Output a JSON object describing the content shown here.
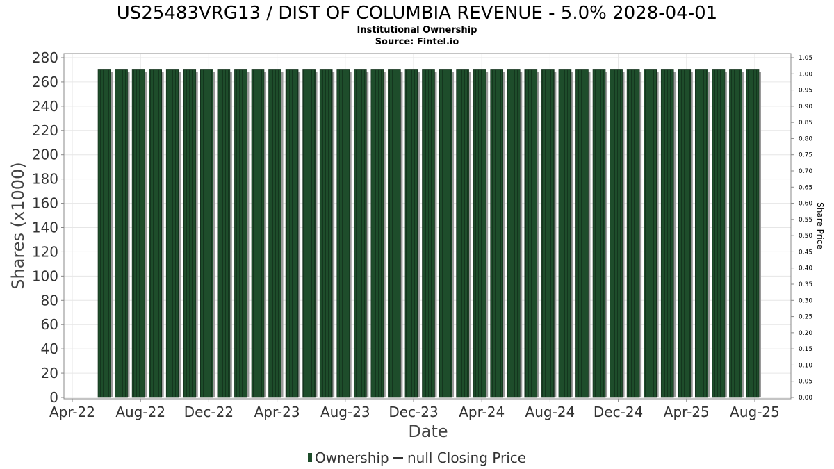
{
  "chart_data": {
    "type": "bar",
    "title": "US25483VRG13 / DIST OF COLUMBIA REVENUE - 5.0% 2028-04-01",
    "subtitle": "Institutional Ownership",
    "source": "Source: Fintel.io",
    "xlabel": "Date",
    "ylabel": "Shares (x1000)",
    "y2label": "Share Price",
    "ylim": [
      0,
      280
    ],
    "y2lim": [
      0,
      1.05
    ],
    "yticks": [
      "0",
      "20",
      "40",
      "60",
      "80",
      "100",
      "120",
      "140",
      "160",
      "180",
      "200",
      "220",
      "240",
      "260",
      "280"
    ],
    "y2ticks": [
      "0.00",
      "0.05",
      "0.10",
      "0.15",
      "0.20",
      "0.25",
      "0.30",
      "0.35",
      "0.40",
      "0.45",
      "0.50",
      "0.55",
      "0.60",
      "0.65",
      "0.70",
      "0.75",
      "0.80",
      "0.85",
      "0.90",
      "0.95",
      "1.00",
      "1.05"
    ],
    "xticks": [
      "Apr-22",
      "Aug-22",
      "Dec-22",
      "Apr-23",
      "Aug-23",
      "Dec-23",
      "Apr-24",
      "Aug-24",
      "Dec-24",
      "Apr-25",
      "Aug-25"
    ],
    "grid": true,
    "series": [
      {
        "name": "Ownership",
        "color": "#1e4d2b",
        "values": [
          270,
          270,
          270,
          270,
          270,
          270,
          270,
          270,
          270,
          270,
          270,
          270,
          270,
          270,
          270,
          270,
          270,
          270,
          270,
          270,
          270,
          270,
          270,
          270,
          270,
          270,
          270,
          270,
          270,
          270,
          270,
          270,
          270,
          270,
          270,
          270,
          270,
          270,
          270
        ]
      },
      {
        "name": "null Closing Price",
        "color": "#333333",
        "values": []
      }
    ],
    "legend_position": "bottom"
  }
}
